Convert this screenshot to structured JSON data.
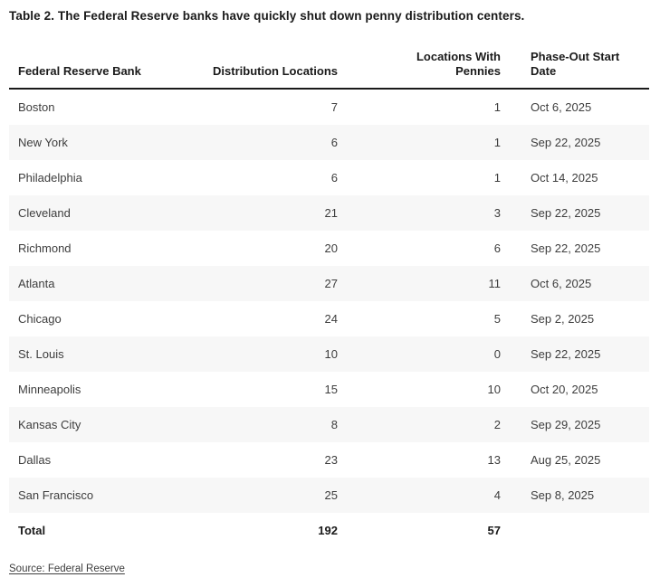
{
  "title": "Table 2. The Federal Reserve banks have quickly shut down penny distribution centers.",
  "source": {
    "label": "Source: Federal Reserve"
  },
  "colors": {
    "row_alt_background": "#f7f7f7",
    "header_rule": "#1a1a1a",
    "heading_text": "#1a1a1a",
    "body_text": "#3d3d3d",
    "page_background": "#ffffff"
  },
  "chart_data": {
    "type": "table",
    "title": "Table 2. The Federal Reserve banks have quickly shut down penny distribution centers.",
    "columns": [
      {
        "label": "Federal Reserve Bank",
        "align": "left"
      },
      {
        "label": "Distribution Locations",
        "align": "right"
      },
      {
        "label": "Locations With Pennies",
        "align": "right"
      },
      {
        "label": "Phase-Out Start Date",
        "align": "left"
      }
    ],
    "rows": [
      [
        "Boston",
        7,
        1,
        "Oct 6, 2025"
      ],
      [
        "New York",
        6,
        1,
        "Sep 22, 2025"
      ],
      [
        "Philadelphia",
        6,
        1,
        "Oct 14, 2025"
      ],
      [
        "Cleveland",
        21,
        3,
        "Sep 22, 2025"
      ],
      [
        "Richmond",
        20,
        6,
        "Sep 22, 2025"
      ],
      [
        "Atlanta",
        27,
        11,
        "Oct 6, 2025"
      ],
      [
        "Chicago",
        24,
        5,
        "Sep 2, 2025"
      ],
      [
        "St. Louis",
        10,
        0,
        "Sep 22, 2025"
      ],
      [
        "Minneapolis",
        15,
        10,
        "Oct 20, 2025"
      ],
      [
        "Kansas City",
        8,
        2,
        "Sep 29, 2025"
      ],
      [
        "Dallas",
        23,
        13,
        "Aug 25, 2025"
      ],
      [
        "San Francisco",
        25,
        4,
        "Sep 8, 2025"
      ]
    ],
    "total": [
      "Total",
      192,
      57,
      ""
    ],
    "source": "Source: Federal Reserve",
    "legend_position": "none",
    "grid": "horizontal-row-banding"
  }
}
